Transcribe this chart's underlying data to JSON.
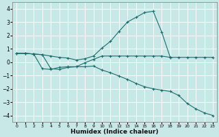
{
  "title": "",
  "xlabel": "Humidex (Indice chaleur)",
  "bg_color": "#c8e8e8",
  "line_color": "#1a6b6b",
  "grid_color": "#ffffff",
  "xlim": [
    -0.5,
    23.5
  ],
  "ylim": [
    -4.5,
    4.5
  ],
  "yticks": [
    -4,
    -3,
    -2,
    -1,
    0,
    1,
    2,
    3,
    4
  ],
  "xticks": [
    0,
    1,
    2,
    3,
    4,
    5,
    6,
    7,
    8,
    9,
    10,
    11,
    12,
    13,
    14,
    15,
    16,
    17,
    18,
    19,
    20,
    21,
    22,
    23
  ],
  "line1_x": [
    0,
    1,
    2,
    3,
    4,
    5,
    6,
    7,
    8,
    9,
    10,
    11,
    12,
    13,
    14,
    15,
    16,
    17,
    18,
    19,
    20,
    21,
    22,
    23
  ],
  "line1_y": [
    0.65,
    0.65,
    0.6,
    0.55,
    0.45,
    0.35,
    0.3,
    0.15,
    0.25,
    0.45,
    1.05,
    1.55,
    2.3,
    3.0,
    3.35,
    3.7,
    3.8,
    2.25,
    0.35,
    0.35,
    0.35,
    0.35,
    0.35,
    0.35
  ],
  "line2_x": [
    0,
    1,
    2,
    3,
    4,
    5,
    6,
    7,
    8,
    9,
    10,
    11,
    12,
    13,
    14,
    15,
    16,
    17,
    18
  ],
  "line2_y": [
    0.65,
    0.65,
    0.6,
    -0.5,
    -0.55,
    -0.4,
    -0.35,
    -0.35,
    -0.05,
    0.2,
    0.45,
    0.45,
    0.45,
    0.45,
    0.45,
    0.45,
    0.45,
    0.45,
    0.35
  ],
  "line3_x": [
    0,
    1,
    2,
    3,
    4,
    5,
    6,
    7,
    8,
    9,
    10,
    11,
    12,
    13,
    14,
    15,
    16,
    17,
    18,
    19,
    20,
    21,
    22,
    23
  ],
  "line3_y": [
    0.65,
    0.65,
    0.6,
    0.55,
    -0.5,
    -0.55,
    -0.4,
    -0.35,
    -0.35,
    -0.3,
    -0.6,
    -0.8,
    -1.05,
    -1.3,
    -1.6,
    -1.85,
    -2.0,
    -2.1,
    -2.2,
    -2.5,
    -3.1,
    -3.5,
    -3.8,
    -4.0
  ]
}
